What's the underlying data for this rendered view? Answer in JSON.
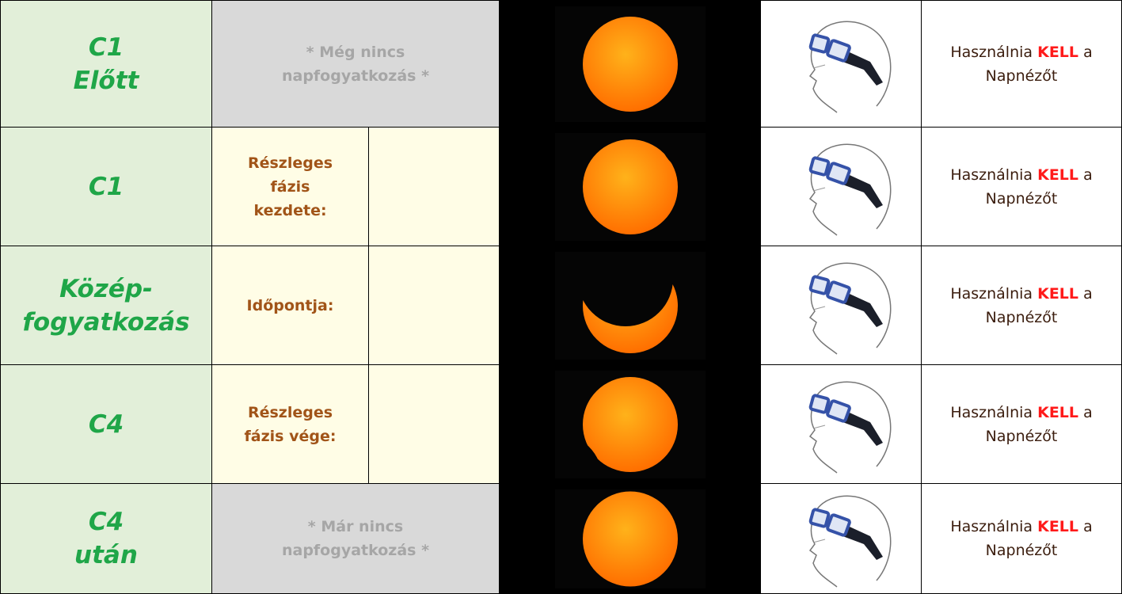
{
  "rows": [
    {
      "phase": [
        "C1",
        "Előtt"
      ],
      "note": "* Még nincs napfogyatkozás *",
      "advice": {
        "before": "Használnia",
        "emphasis": "KELL",
        "after": "a Napnézőt"
      }
    },
    {
      "phase": [
        "C1"
      ],
      "label": "Részleges fázis kezdete:",
      "advice": {
        "before": "Használnia",
        "emphasis": "KELL",
        "after": "a Napnézőt"
      }
    },
    {
      "phase": [
        "Közép-",
        "fogyatkozás"
      ],
      "label": "Időpontja:",
      "advice": {
        "before": "Használnia",
        "emphasis": "KELL",
        "after": "a Napnézőt"
      }
    },
    {
      "phase": [
        "C4"
      ],
      "label": "Részleges fázis vége:",
      "advice": {
        "before": "Használnia",
        "emphasis": "KELL",
        "after": "a Napnézőt"
      }
    },
    {
      "phase": [
        "C4",
        "után"
      ],
      "note": "* Már nincs napfogyatkozás *",
      "advice": {
        "before": "Használnia",
        "emphasis": "KELL",
        "after": "a Napnézőt"
      }
    }
  ]
}
